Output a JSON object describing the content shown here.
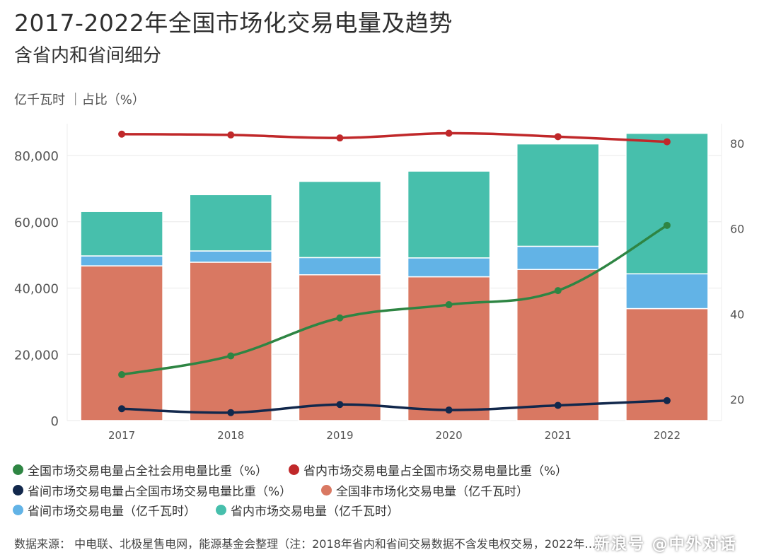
{
  "header": {
    "title": "2017-2022年全国市场化交易电量及趋势",
    "subtitle": "含省内和省间细分",
    "unit": "亿千瓦时 ｜占比（%）"
  },
  "chart_data": {
    "type": "bar",
    "stacked": true,
    "categories": [
      "2017",
      "2018",
      "2019",
      "2020",
      "2021",
      "2022"
    ],
    "ylim": [
      0,
      90000
    ],
    "y_ticks": [
      "0",
      "20,000",
      "40,000",
      "60,000",
      "80,000"
    ],
    "y2lim": [
      15,
      85
    ],
    "y2_ticks": [
      "20",
      "40",
      "60",
      "80"
    ],
    "grid": true,
    "legend_position": "bottom",
    "series": [
      {
        "name": "全国非市场化交易电量（亿千瓦时）",
        "kind": "bar",
        "color": "#d97862",
        "values": [
          46700,
          47800,
          44000,
          43400,
          45600,
          33800
        ]
      },
      {
        "name": "省间市场交易电量（亿千瓦时）",
        "kind": "bar",
        "color": "#62b3e6",
        "values": [
          3000,
          3400,
          5200,
          5700,
          7000,
          10500
        ]
      },
      {
        "name": "省内市场交易电量（亿千瓦时）",
        "kind": "bar",
        "color": "#47bfac",
        "values": [
          13400,
          17000,
          23000,
          26200,
          30900,
          42400
        ]
      },
      {
        "name": "全国市场交易电量占全社会用电量比重（%）",
        "kind": "line",
        "axis": "right",
        "color": "#2e8543",
        "values": [
          25.8,
          30.2,
          39.1,
          42.2,
          45.5,
          60.8
        ]
      },
      {
        "name": "省内市场交易电量占全国市场交易电量比重（%）",
        "kind": "line",
        "axis": "right",
        "color": "#c0282a",
        "values": [
          82.2,
          82.0,
          81.3,
          82.4,
          81.6,
          80.4
        ]
      },
      {
        "name": "省间市场交易电量占全国市场交易电量比重（%）",
        "kind": "line",
        "axis": "right",
        "color": "#12284c",
        "values": [
          17.8,
          16.9,
          18.8,
          17.5,
          18.6,
          19.7
        ]
      }
    ],
    "legend_order": [
      3,
      4,
      5,
      0,
      1,
      2
    ]
  },
  "footer": {
    "source": "数据来源： 中电联、北极星售电网，能源基金会整理（注：2018年省内和省间交易数据不含发电权交易，2022年…",
    "watermark": "新浪号 @中外对话"
  }
}
